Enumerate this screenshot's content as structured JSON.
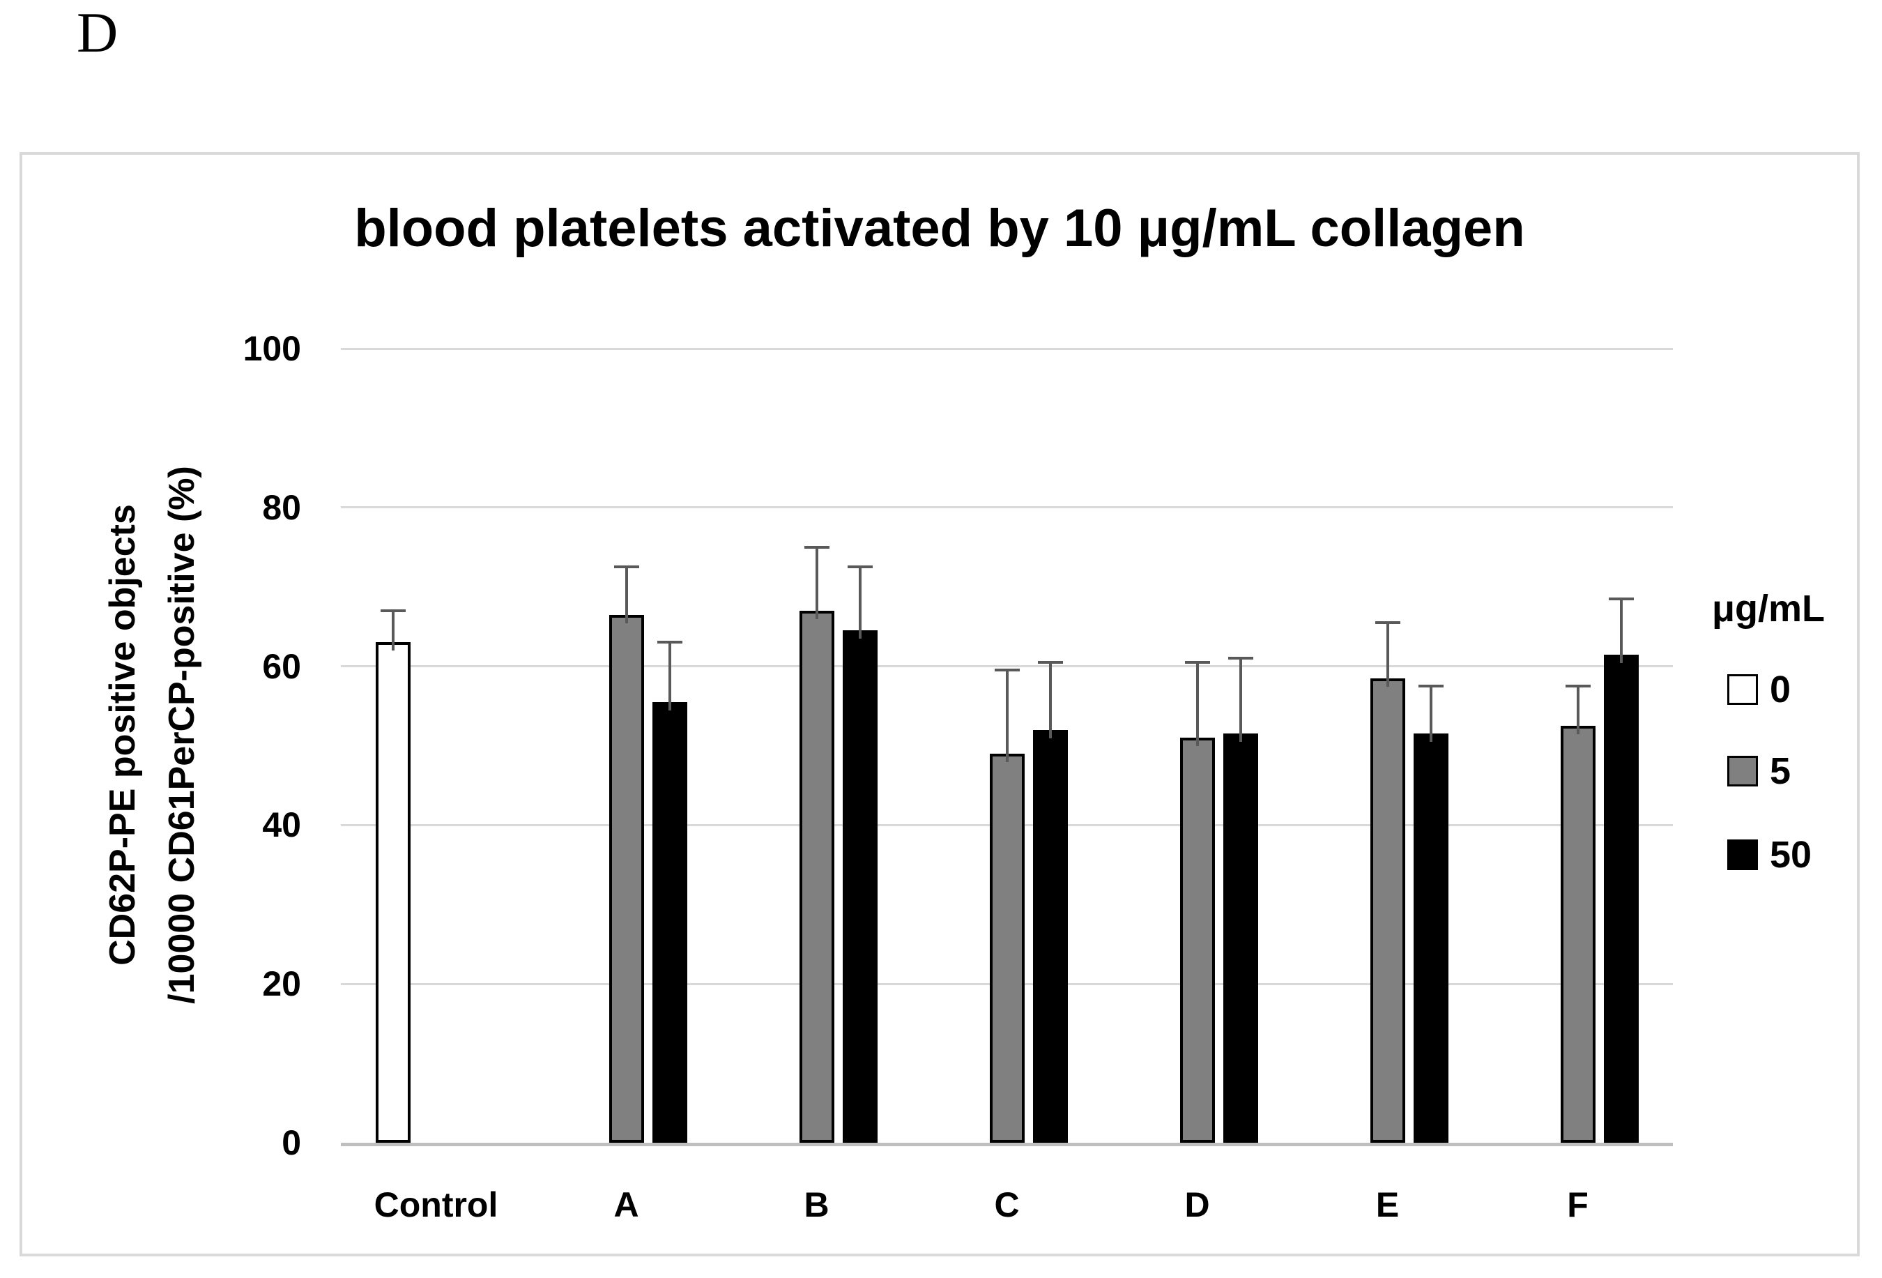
{
  "panel_label": "D",
  "chart_data": {
    "type": "bar",
    "title": "blood platelets activated by 10 μg/mL collagen",
    "ylabel_line1": "CD62P-PE positive objects",
    "ylabel_line2": "/10000 CD61PerCP-positive (%)",
    "xlabel": "",
    "categories": [
      "Control",
      "A",
      "B",
      "C",
      "D",
      "E",
      "F"
    ],
    "yticks": [
      0,
      20,
      40,
      60,
      80,
      100
    ],
    "ylim": [
      0,
      100
    ],
    "grid": true,
    "legend_title": "μg/mL",
    "legend_position": "right",
    "series": [
      {
        "name": "0",
        "color": "#ffffff",
        "values": [
          63,
          null,
          null,
          null,
          null,
          null,
          null
        ],
        "errors": [
          4,
          null,
          null,
          null,
          null,
          null,
          null
        ]
      },
      {
        "name": "5",
        "color": "#808080",
        "values": [
          null,
          66.5,
          67,
          49,
          51,
          58.5,
          52.5
        ],
        "errors": [
          null,
          6,
          8,
          10.5,
          9.5,
          7,
          5
        ]
      },
      {
        "name": "50",
        "color": "#000000",
        "values": [
          null,
          55.5,
          64.5,
          52,
          51.5,
          51.5,
          61.5
        ],
        "errors": [
          null,
          7.5,
          8,
          8.5,
          9.5,
          6,
          7
        ]
      }
    ],
    "colors": {
      "gridline": "#d9d9d9",
      "axis_line": "#bfbfbf",
      "error_bar": "#595959",
      "bar_border": "#000000",
      "frame_border": "#d9d9d9",
      "text": "#000000"
    }
  }
}
